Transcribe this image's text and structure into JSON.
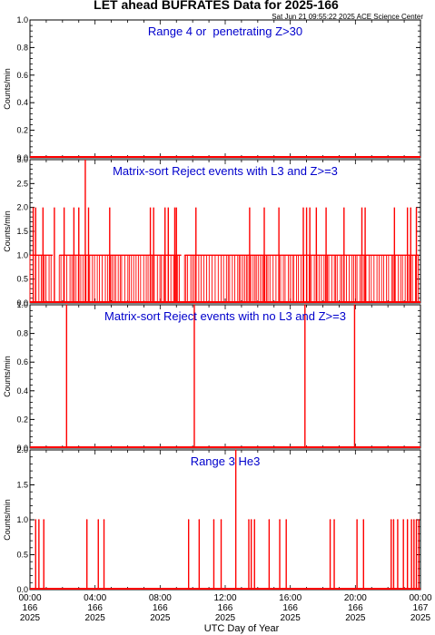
{
  "title": "LET ahead BUFRATES Data for 2025-166",
  "stamp": "Sat Jun 21 09:55:22 2025 ACE Science Center",
  "colors": {
    "data": "#ff0000",
    "annotation": "#0000cc",
    "axes": "#000000"
  },
  "chart_data": [
    {
      "type": "bar",
      "annotation": "Range 4 or  penetrating Z>30",
      "ylabel": "Counts/min",
      "ylim": [
        0,
        1.0
      ],
      "yticks": [
        "0.0",
        "0.2",
        "0.4",
        "0.6",
        "0.8",
        "1.0"
      ],
      "baseline": [
        0,
        24
      ],
      "events": []
    },
    {
      "type": "bar",
      "annotation": "Matrix-sort Reject events with L3 and Z>=3",
      "ylabel": "Counts/min",
      "ylim": [
        0,
        3.0
      ],
      "yticks": [
        "0.0",
        "0.5",
        "1.0",
        "1.5",
        "2.0",
        "2.5",
        "3.0"
      ],
      "baseline": [
        0,
        24
      ],
      "dense_level": 1,
      "dense_ranges": [
        [
          0.0,
          1.4
        ],
        [
          1.8,
          9.3
        ],
        [
          9.5,
          23.9
        ]
      ],
      "events": [
        {
          "x": 0.2,
          "y": 2
        },
        {
          "x": 0.35,
          "y": 2
        },
        {
          "x": 0.8,
          "y": 2
        },
        {
          "x": 1.5,
          "y": 2
        },
        {
          "x": 2.1,
          "y": 2
        },
        {
          "x": 2.7,
          "y": 2
        },
        {
          "x": 3.0,
          "y": 2
        },
        {
          "x": 3.4,
          "y": 3
        },
        {
          "x": 3.6,
          "y": 2
        },
        {
          "x": 4.9,
          "y": 2
        },
        {
          "x": 7.4,
          "y": 2
        },
        {
          "x": 7.6,
          "y": 2
        },
        {
          "x": 8.3,
          "y": 2
        },
        {
          "x": 8.5,
          "y": 2
        },
        {
          "x": 8.9,
          "y": 2
        },
        {
          "x": 9.0,
          "y": 2
        },
        {
          "x": 10.2,
          "y": 2
        },
        {
          "x": 13.5,
          "y": 2
        },
        {
          "x": 14.4,
          "y": 2
        },
        {
          "x": 15.3,
          "y": 2
        },
        {
          "x": 16.8,
          "y": 2
        },
        {
          "x": 17.0,
          "y": 2
        },
        {
          "x": 17.2,
          "y": 2
        },
        {
          "x": 17.6,
          "y": 2
        },
        {
          "x": 18.2,
          "y": 2
        },
        {
          "x": 19.3,
          "y": 2
        },
        {
          "x": 20.4,
          "y": 2
        },
        {
          "x": 20.6,
          "y": 2
        },
        {
          "x": 22.4,
          "y": 2
        },
        {
          "x": 23.2,
          "y": 2
        },
        {
          "x": 23.4,
          "y": 2
        },
        {
          "x": 23.75,
          "y": 2
        }
      ]
    },
    {
      "type": "bar",
      "annotation": "Matrix-sort Reject events with no L3 and Z>=3",
      "ylabel": "Counts/min",
      "ylim": [
        0,
        1.0
      ],
      "yticks": [
        "0.0",
        "0.2",
        "0.4",
        "0.6",
        "0.8",
        "1.0"
      ],
      "baseline": [
        0,
        24
      ],
      "events": [
        {
          "x": 2.25,
          "y": 1
        },
        {
          "x": 10.1,
          "y": 1
        },
        {
          "x": 16.9,
          "y": 1
        },
        {
          "x": 19.95,
          "y": 1
        }
      ]
    },
    {
      "type": "bar",
      "annotation": "Range 3 He3",
      "ylabel": "Counts/min",
      "ylim": [
        0,
        2.0
      ],
      "yticks": [
        "0.0",
        "0.5",
        "1.0",
        "1.5",
        "2.0"
      ],
      "baseline": [
        0,
        24
      ],
      "events": [
        {
          "x": 0.35,
          "y": 1
        },
        {
          "x": 0.55,
          "y": 1
        },
        {
          "x": 0.85,
          "y": 1
        },
        {
          "x": 3.5,
          "y": 1
        },
        {
          "x": 4.2,
          "y": 1
        },
        {
          "x": 4.55,
          "y": 1
        },
        {
          "x": 9.75,
          "y": 1
        },
        {
          "x": 10.4,
          "y": 1
        },
        {
          "x": 11.3,
          "y": 1
        },
        {
          "x": 11.75,
          "y": 1
        },
        {
          "x": 12.65,
          "y": 2
        },
        {
          "x": 13.45,
          "y": 1
        },
        {
          "x": 13.6,
          "y": 1
        },
        {
          "x": 13.8,
          "y": 1
        },
        {
          "x": 14.7,
          "y": 1
        },
        {
          "x": 15.35,
          "y": 1
        },
        {
          "x": 15.75,
          "y": 1
        },
        {
          "x": 18.45,
          "y": 1
        },
        {
          "x": 18.7,
          "y": 1
        },
        {
          "x": 20.1,
          "y": 1
        },
        {
          "x": 20.5,
          "y": 1
        },
        {
          "x": 22.2,
          "y": 1
        },
        {
          "x": 22.35,
          "y": 1
        },
        {
          "x": 22.6,
          "y": 1
        },
        {
          "x": 22.95,
          "y": 1
        },
        {
          "x": 23.2,
          "y": 1
        },
        {
          "x": 23.45,
          "y": 1
        },
        {
          "x": 23.6,
          "y": 1
        },
        {
          "x": 23.75,
          "y": 1
        },
        {
          "x": 23.9,
          "y": 1
        }
      ]
    }
  ],
  "x_axis": {
    "xlim": [
      0,
      24
    ],
    "label": "UTC Day of Year",
    "ticks": [
      {
        "x": 0,
        "time": "00:00",
        "doy": "166",
        "year": "2025"
      },
      {
        "x": 4,
        "time": "04:00",
        "doy": "166",
        "year": "2025"
      },
      {
        "x": 8,
        "time": "08:00",
        "doy": "166",
        "year": "2025"
      },
      {
        "x": 12,
        "time": "12:00",
        "doy": "166",
        "year": "2025"
      },
      {
        "x": 16,
        "time": "16:00",
        "doy": "166",
        "year": "2025"
      },
      {
        "x": 20,
        "time": "20:00",
        "doy": "166",
        "year": "2025"
      },
      {
        "x": 24,
        "time": "00:00",
        "doy": "167",
        "year": "2025"
      }
    ]
  }
}
